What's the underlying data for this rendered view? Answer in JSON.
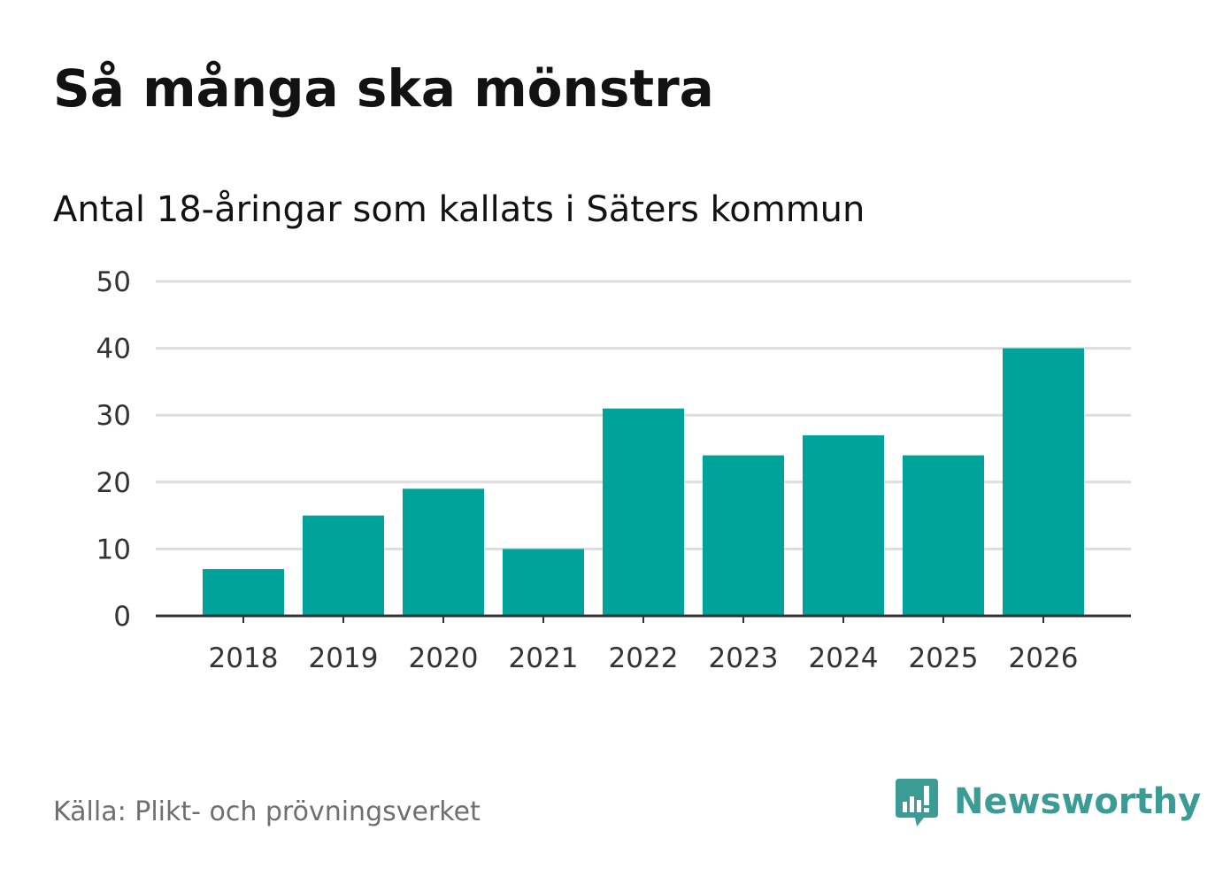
{
  "title": "Så många ska mönstra",
  "subtitle": "Antal 18-åringar som kallats i Säters kommun",
  "source": "Källa: Plikt- och prövningsverket",
  "brand": {
    "name": "Newsworthy",
    "color": "#3a9c94"
  },
  "colors": {
    "bar": "#00a39a",
    "grid": "#dddddd",
    "axis": "#333333"
  },
  "chart_data": {
    "type": "bar",
    "title": "Så många ska mönstra",
    "subtitle": "Antal 18-åringar som kallats i Säters kommun",
    "xlabel": "",
    "ylabel": "",
    "categories": [
      "2018",
      "2019",
      "2020",
      "2021",
      "2022",
      "2023",
      "2024",
      "2025",
      "2026"
    ],
    "values": [
      7,
      15,
      19,
      10,
      31,
      24,
      27,
      24,
      40
    ],
    "ylim": [
      0,
      50
    ],
    "yticks": [
      "0",
      "10",
      "20",
      "30",
      "40",
      "50"
    ],
    "grid": true,
    "legend": "none"
  }
}
